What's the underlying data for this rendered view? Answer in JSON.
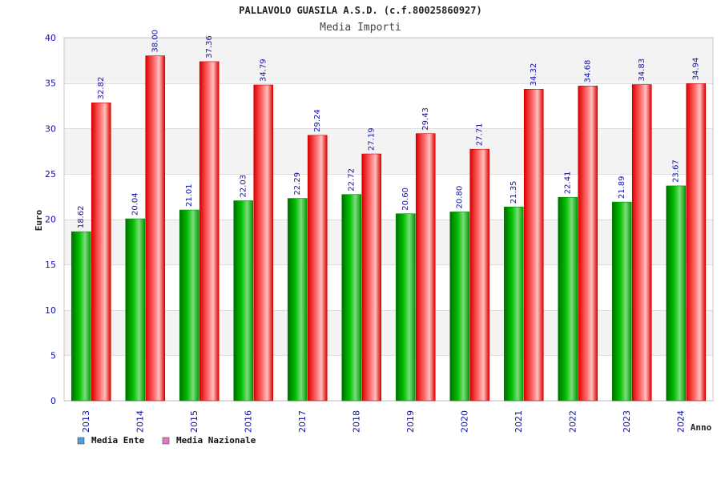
{
  "chart_data": {
    "type": "bar",
    "title": "PALLAVOLO GUASILA A.S.D. (c.f.80025860927)",
    "subtitle": "Media Importi",
    "xlabel": "Anno",
    "ylabel": "Euro",
    "ylim": [
      0,
      40
    ],
    "yticks": [
      0,
      5,
      10,
      15,
      20,
      25,
      30,
      35,
      40
    ],
    "grid": true,
    "legend_position": "bottom-left",
    "categories": [
      "2013",
      "2014",
      "2015",
      "2016",
      "2017",
      "2018",
      "2019",
      "2020",
      "2021",
      "2022",
      "2023",
      "2024"
    ],
    "series": [
      {
        "name": "Media Ente",
        "values": [
          18.62,
          20.04,
          21.01,
          22.03,
          22.29,
          22.72,
          20.6,
          20.8,
          21.35,
          22.41,
          21.89,
          23.67
        ],
        "labels": [
          "18.62",
          "20.04",
          "21.01",
          "22.03",
          "22.29",
          "22.72",
          "20.60",
          "20.80",
          "21.35",
          "22.41",
          "21.89",
          "23.67"
        ],
        "color": "#00aa00",
        "legend_color": "#5b9bd5"
      },
      {
        "name": "Media Nazionale",
        "values": [
          32.82,
          38.0,
          37.36,
          34.79,
          29.24,
          27.19,
          29.43,
          27.71,
          34.32,
          34.68,
          34.83,
          34.94
        ],
        "labels": [
          "32.82",
          "38.00",
          "37.36",
          "34.79",
          "29.24",
          "27.19",
          "29.43",
          "27.71",
          "34.32",
          "34.68",
          "34.83",
          "34.94"
        ],
        "color": "#ee0000",
        "legend_color": "#e377c2"
      }
    ]
  }
}
